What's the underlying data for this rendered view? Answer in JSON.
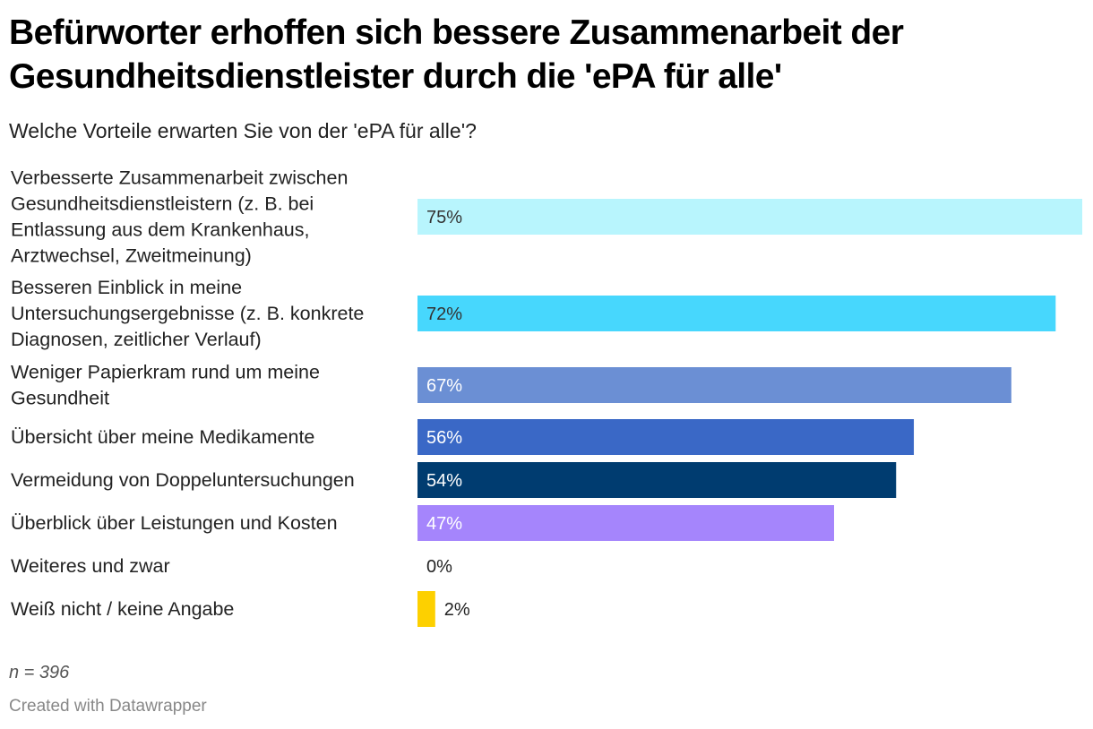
{
  "header": {
    "title": "Befürworter erhoffen sich bessere Zusammenarbeit der Gesundheitsdienstleister durch die 'ePA für alle'",
    "subtitle": "Welche Vorteile erwarten Sie von der 'ePA für alle'?"
  },
  "footer": {
    "notes": "n = 396",
    "credit": "Created with Datawrapper"
  },
  "chart_data": {
    "type": "bar",
    "orientation": "horizontal",
    "title": "Befürworter erhoffen sich bessere Zusammenarbeit der Gesundheitsdienstleister durch die 'ePA für alle'",
    "subtitle": "Welche Vorteile erwarten Sie von der 'ePA für alle'?",
    "xlabel": "",
    "ylabel": "",
    "unit": "%",
    "xlim": [
      0,
      75
    ],
    "grid": false,
    "legend": "none",
    "categories": [
      [
        "Verbesserte Zusammenarbeit zwischen",
        "Gesundheitsdienstleistern (z. B. bei",
        "Entlassung aus dem Krankenhaus,",
        "Arztwechsel, Zweitmeinung)"
      ],
      [
        "Besseren Einblick in meine",
        "Untersuchungsergebnisse (z. B. konkrete",
        "Diagnosen, zeitlicher Verlauf)"
      ],
      [
        "Weniger Papierkram rund um meine",
        "Gesundheit"
      ],
      [
        "Übersicht über meine Medikamente"
      ],
      [
        "Vermeidung von Doppeluntersuchungen"
      ],
      [
        "Überblick über Leistungen und Kosten"
      ],
      [
        "Weiteres und zwar"
      ],
      [
        "Weiß nicht / keine Angabe"
      ]
    ],
    "values": [
      75,
      72,
      67,
      56,
      54,
      47,
      0,
      2
    ],
    "value_labels": [
      "75%",
      "72%",
      "67%",
      "56%",
      "54%",
      "47%",
      "0%",
      "2%"
    ],
    "colors": [
      "#b8f5fd",
      "#47d7fd",
      "#6b8fd4",
      "#3a68c6",
      "#003c70",
      "#a585fc",
      "#cccccc",
      "#fdd000"
    ],
    "label_colors": [
      "#333333",
      "#333333",
      "#ffffff",
      "#ffffff",
      "#ffffff",
      "#ffffff",
      "#222222",
      "#222222"
    ]
  }
}
